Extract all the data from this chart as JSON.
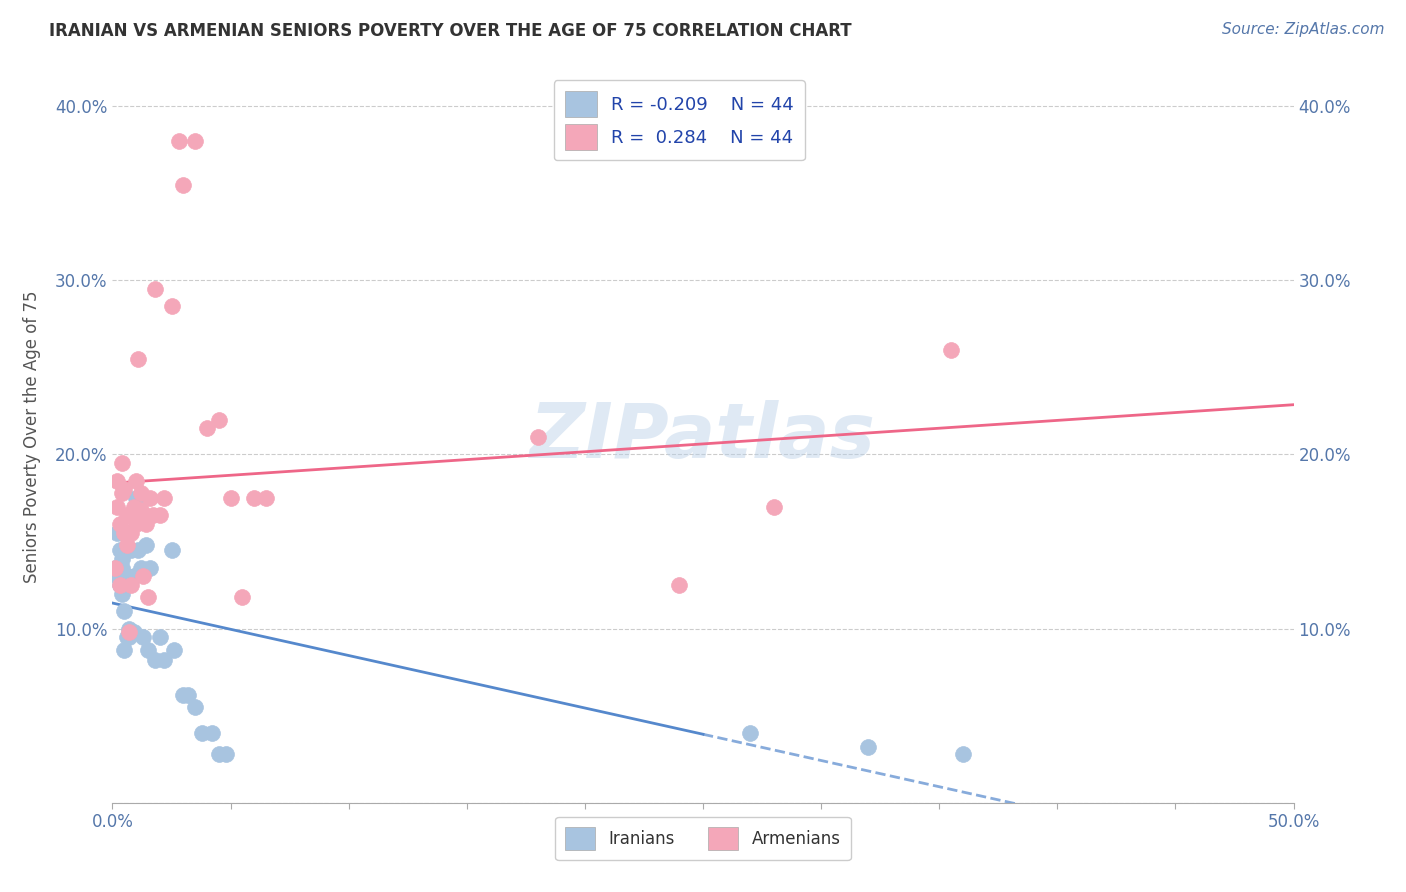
{
  "title": "IRANIAN VS ARMENIAN SENIORS POVERTY OVER THE AGE OF 75 CORRELATION CHART",
  "source": "Source: ZipAtlas.com",
  "ylabel": "Seniors Poverty Over the Age of 75",
  "xlim": [
    0.0,
    0.5
  ],
  "ylim": [
    0.0,
    0.42
  ],
  "xticks": [
    0.0,
    0.05,
    0.1,
    0.15,
    0.2,
    0.25,
    0.3,
    0.35,
    0.4,
    0.45,
    0.5
  ],
  "xticklabels": [
    "0.0%",
    "",
    "",
    "",
    "",
    "",
    "",
    "",
    "",
    "",
    "50.0%"
  ],
  "yticks": [
    0.0,
    0.1,
    0.2,
    0.3,
    0.4
  ],
  "yticklabels": [
    "",
    "10.0%",
    "20.0%",
    "30.0%",
    "40.0%"
  ],
  "r_iranian": -0.209,
  "r_armenian": 0.284,
  "n_iranian": 44,
  "n_armenian": 44,
  "color_iranian": "#a8c4e0",
  "color_armenian": "#f4a7b9",
  "line_color_iranian": "#5588cc",
  "line_color_armenian": "#ee6688",
  "background_color": "#ffffff",
  "grid_color": "#cccccc",
  "watermark": "ZIPatlas",
  "iranians_x": [
    0.001,
    0.002,
    0.002,
    0.003,
    0.003,
    0.004,
    0.004,
    0.004,
    0.005,
    0.005,
    0.005,
    0.006,
    0.006,
    0.006,
    0.007,
    0.007,
    0.007,
    0.008,
    0.008,
    0.009,
    0.009,
    0.01,
    0.01,
    0.011,
    0.012,
    0.013,
    0.014,
    0.015,
    0.016,
    0.018,
    0.02,
    0.022,
    0.025,
    0.026,
    0.03,
    0.032,
    0.035,
    0.038,
    0.042,
    0.045,
    0.048,
    0.27,
    0.32,
    0.36
  ],
  "iranians_y": [
    0.135,
    0.13,
    0.155,
    0.125,
    0.145,
    0.14,
    0.135,
    0.12,
    0.088,
    0.125,
    0.11,
    0.095,
    0.13,
    0.13,
    0.1,
    0.155,
    0.095,
    0.098,
    0.145,
    0.098,
    0.13,
    0.17,
    0.175,
    0.145,
    0.135,
    0.095,
    0.148,
    0.088,
    0.135,
    0.082,
    0.095,
    0.082,
    0.145,
    0.088,
    0.062,
    0.062,
    0.055,
    0.04,
    0.04,
    0.028,
    0.028,
    0.04,
    0.032,
    0.028
  ],
  "armenians_x": [
    0.001,
    0.002,
    0.002,
    0.003,
    0.003,
    0.004,
    0.004,
    0.005,
    0.005,
    0.006,
    0.006,
    0.006,
    0.007,
    0.007,
    0.008,
    0.008,
    0.009,
    0.01,
    0.01,
    0.011,
    0.012,
    0.012,
    0.013,
    0.014,
    0.015,
    0.016,
    0.017,
    0.018,
    0.02,
    0.022,
    0.025,
    0.028,
    0.03,
    0.035,
    0.04,
    0.045,
    0.05,
    0.055,
    0.06,
    0.065,
    0.18,
    0.24,
    0.28,
    0.355
  ],
  "armenians_y": [
    0.135,
    0.17,
    0.185,
    0.125,
    0.16,
    0.178,
    0.195,
    0.155,
    0.18,
    0.165,
    0.155,
    0.148,
    0.165,
    0.098,
    0.155,
    0.125,
    0.17,
    0.185,
    0.16,
    0.255,
    0.178,
    0.168,
    0.13,
    0.16,
    0.118,
    0.175,
    0.165,
    0.295,
    0.165,
    0.175,
    0.285,
    0.38,
    0.355,
    0.38,
    0.215,
    0.22,
    0.175,
    0.118,
    0.175,
    0.175,
    0.21,
    0.125,
    0.17,
    0.26
  ]
}
